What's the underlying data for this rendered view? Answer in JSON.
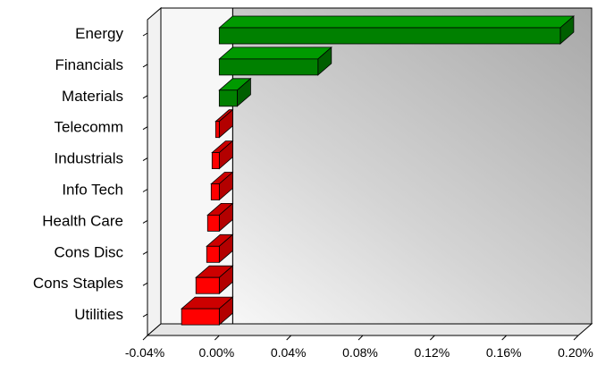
{
  "chart_data": {
    "type": "bar",
    "orientation": "horizontal",
    "style": "3d",
    "categories": [
      "Energy",
      "Financials",
      "Materials",
      "Telecomm",
      "Industrials",
      "Info Tech",
      "Health Care",
      "Cons Disc",
      "Cons Staples",
      "Utilities"
    ],
    "values": [
      0.19,
      0.055,
      0.01,
      -0.002,
      -0.004,
      -0.0045,
      -0.0065,
      -0.007,
      -0.013,
      -0.021
    ],
    "value_unit": "%",
    "xlim": [
      -0.04,
      0.2
    ],
    "x_ticks": [
      -0.04,
      0.0,
      0.04,
      0.08,
      0.12,
      0.16,
      0.2
    ],
    "x_tick_labels": [
      "-0.04%",
      "0.00%",
      "0.04%",
      "0.08%",
      "0.12%",
      "0.16%",
      "0.20%"
    ],
    "title": "",
    "xlabel": "",
    "ylabel": "",
    "legend": "none",
    "grid": false,
    "colors": {
      "positive": "#008000",
      "positive_top": "#009a00",
      "positive_side": "#005f00",
      "negative": "#ff0000",
      "negative_top": "#cc0000",
      "negative_side": "#b30000",
      "wall_light": "#ffffff",
      "wall_dark": "#a8a8a8",
      "left_wall": "#f2f2f2"
    }
  }
}
